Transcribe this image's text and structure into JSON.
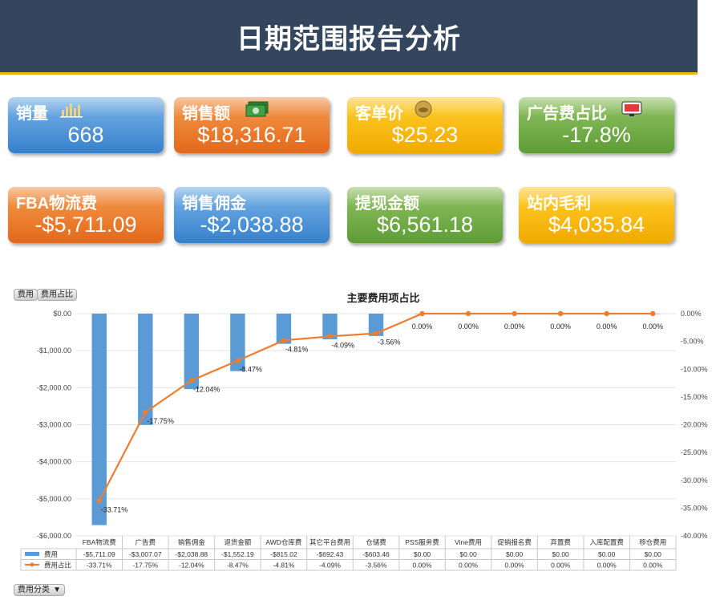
{
  "header": {
    "title": "日期范围报告分析"
  },
  "cards": [
    {
      "label": "销量",
      "value": "668",
      "color": "blue",
      "icon": "bar-chart-icon"
    },
    {
      "label": "销售额",
      "value": "$18,316.71",
      "color": "orange",
      "icon": "money-icon"
    },
    {
      "label": "客单价",
      "value": "$25.23",
      "color": "yellow",
      "icon": "coin-icon"
    },
    {
      "label": "广告费占比",
      "value": "-17.8%",
      "color": "green",
      "icon": "monitor-icon"
    },
    {
      "label": "FBA物流费",
      "value": "-$5,711.09",
      "color": "orange",
      "icon": ""
    },
    {
      "label": "销售佣金",
      "value": "-$2,038.88",
      "color": "blue",
      "icon": ""
    },
    {
      "label": "提现金额",
      "value": "$6,561.18",
      "color": "green",
      "icon": ""
    },
    {
      "label": "站内毛利",
      "value": "$4,035.84",
      "color": "yellow",
      "icon": ""
    }
  ],
  "filters": {
    "field1": "费用",
    "field2": "费用占比",
    "axis_field": "费用分类"
  },
  "chart_data": {
    "type": "bar",
    "title": "主要费用项占比",
    "categories": [
      "FBA物流费",
      "广告费",
      "销售佣金",
      "退货金额",
      "AWD仓库费",
      "其它平台费用",
      "仓储费",
      "PSS服务费",
      "Vine费用",
      "促销报名费",
      "弃置费",
      "入库配置费",
      "移仓费用"
    ],
    "series": [
      {
        "name": "费用",
        "type": "bar",
        "axis": "left",
        "color": "#5b9bd5",
        "values": [
          -5711.09,
          -3007.07,
          -2038.88,
          -1552.19,
          -815.02,
          -692.43,
          -603.46,
          0,
          0,
          0,
          0,
          0,
          0
        ],
        "table_labels": [
          "-$5,711.09",
          "-$3,007.07",
          "-$2,038.88",
          "-$1,552.19",
          "-$815.02",
          "-$692.43",
          "-$603.46",
          "$0.00",
          "$0.00",
          "$0.00",
          "$0.00",
          "$0.00",
          "$0.00"
        ]
      },
      {
        "name": "费用占比",
        "type": "line",
        "axis": "right",
        "color": "#ed7d31",
        "values": [
          -33.71,
          -17.75,
          -12.04,
          -8.47,
          -4.81,
          -4.09,
          -3.56,
          0,
          0,
          0,
          0,
          0,
          0
        ],
        "labels": [
          "-33.71%",
          "-17.75%",
          "-12.04%",
          "-8.47%",
          "-4.81%",
          "-4.09%",
          "-3.56%",
          "0.00%",
          "0.00%",
          "0.00%",
          "0.00%",
          "0.00%",
          "0.00%"
        ]
      }
    ],
    "left_axis": {
      "min": -6000,
      "max": 0,
      "step": 1000,
      "ticks": [
        "$0.00",
        "-$1,000.00",
        "-$2,000.00",
        "-$3,000.00",
        "-$4,000.00",
        "-$5,000.00",
        "-$6,000.00"
      ]
    },
    "right_axis": {
      "min": -40,
      "max": 0,
      "step": 5,
      "ticks": [
        "0.00%",
        "-5.00%",
        "-10.00%",
        "-15.00%",
        "-20.00%",
        "-25.00%",
        "-30.00%",
        "-35.00%",
        "-40.00%"
      ]
    },
    "grid": true,
    "legend": "data-table"
  }
}
